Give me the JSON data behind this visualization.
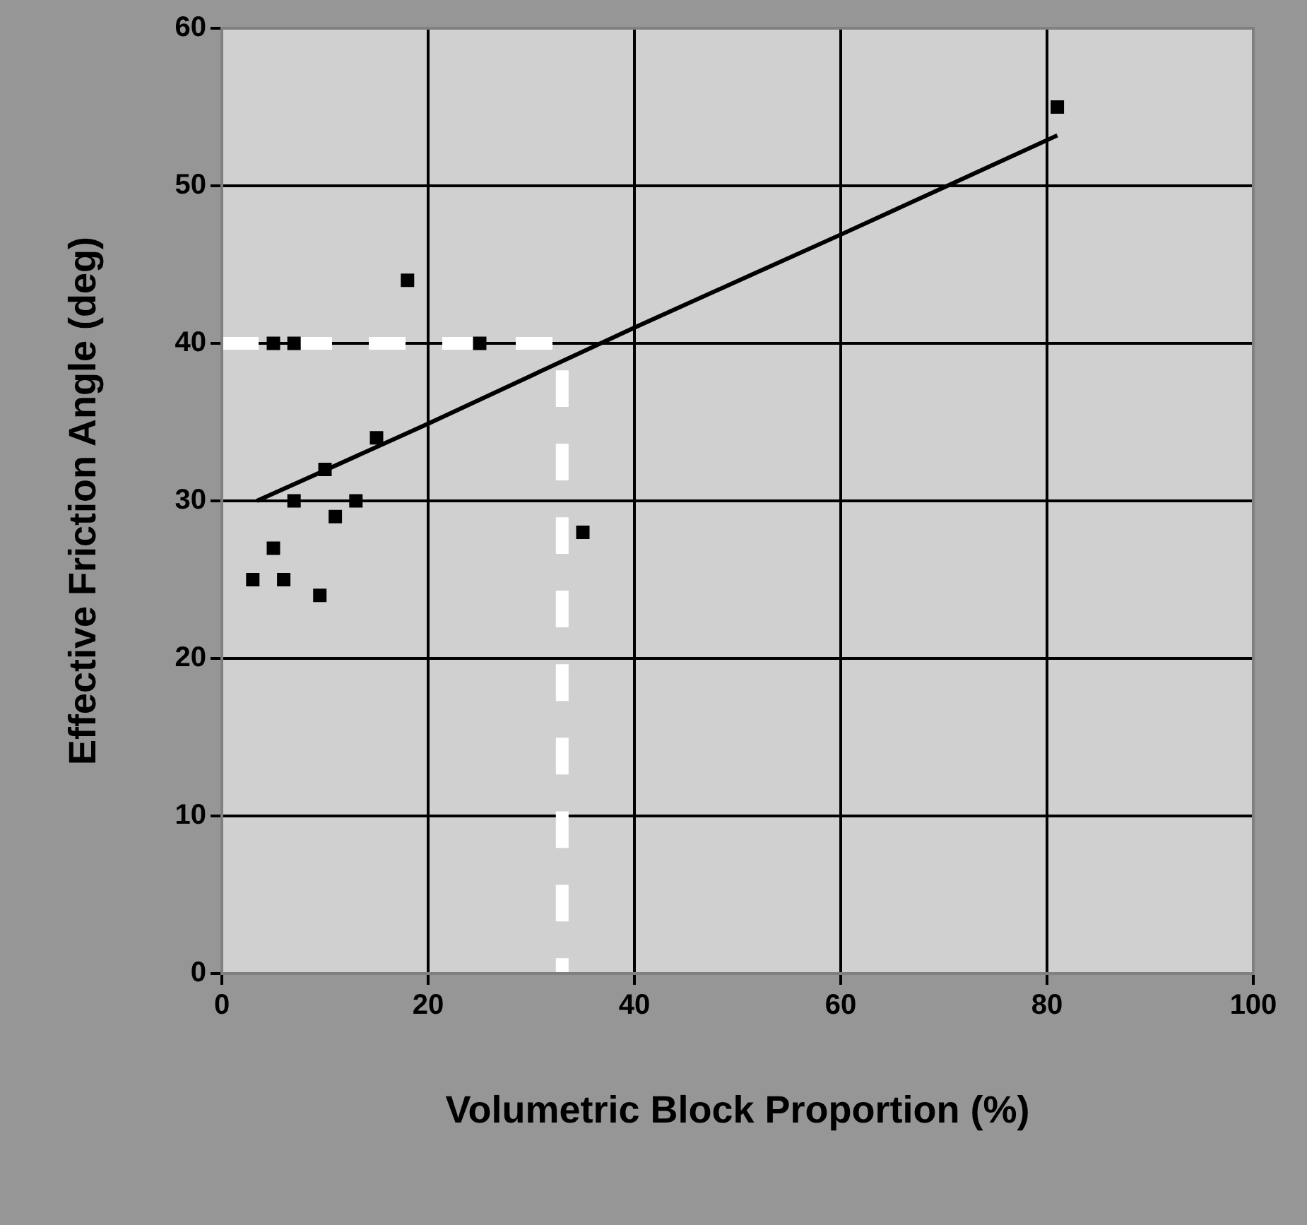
{
  "chart_data": {
    "type": "scatter",
    "xlabel": "Volumetric Block Proportion (%)",
    "ylabel": "Effective Friction Angle (deg)",
    "xlim": [
      0,
      100
    ],
    "xticks": [
      0,
      20,
      40,
      60,
      80,
      100
    ],
    "ylim": [
      0,
      60
    ],
    "yticks": [
      0,
      10,
      20,
      30,
      40,
      50,
      60
    ],
    "grid": true,
    "legend": false,
    "series": [
      {
        "color": "#000000",
        "marker": "square",
        "x": [
          3,
          5,
          5,
          6,
          7,
          7,
          9.5,
          10,
          11,
          13,
          15,
          18,
          25,
          35,
          81
        ],
        "values": [
          25,
          27,
          40,
          25,
          40,
          30,
          24,
          32,
          29,
          30,
          34,
          44,
          40,
          28,
          55
        ]
      },
      {
        "type": "line",
        "color": "#000000",
        "marker": "none",
        "line_style": "solid",
        "x": [
          3.4,
          20,
          40,
          60,
          81
        ],
        "values": [
          30,
          34.9,
          41,
          46.9,
          53.2
        ]
      },
      {
        "type": "line",
        "color": "#ffffff",
        "marker": "none",
        "line_style": "dashed",
        "x": [
          0,
          33,
          33
        ],
        "values": [
          40,
          40,
          0
        ]
      }
    ]
  }
}
